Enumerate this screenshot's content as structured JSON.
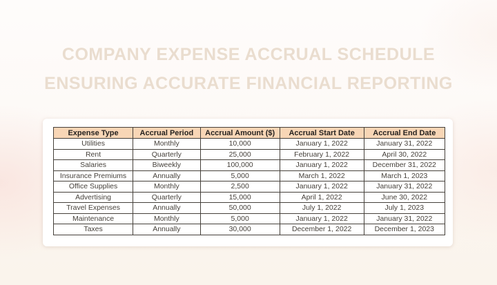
{
  "title": {
    "line1": "COMPANY EXPENSE ACCRUAL SCHEDULE",
    "line2": "ENSURING ACCURATE FINANCIAL REPORTING"
  },
  "colors": {
    "title_text": "#eaddcf",
    "header_bg": "#f8d6b6",
    "table_border": "#45403a",
    "panel_bg": "#ffffff",
    "page_bg": "#fdf9f6"
  },
  "table": {
    "columns": [
      "Expense Type",
      "Accrual Period",
      "Accrual Amount ($)",
      "Accrual Start Date",
      "Accrual End Date"
    ],
    "rows": [
      [
        "Utilities",
        "Monthly",
        "10,000",
        "January 1, 2022",
        "January 31, 2022"
      ],
      [
        "Rent",
        "Quarterly",
        "25,000",
        "February 1, 2022",
        "April 30, 2022"
      ],
      [
        "Salaries",
        "Biweekly",
        "100,000",
        "January 1, 2022",
        "December 31, 2022"
      ],
      [
        "Insurance Premiums",
        "Annually",
        "5,000",
        "March 1, 2022",
        "March 1, 2023"
      ],
      [
        "Office Supplies",
        "Monthly",
        "2,500",
        "January 1, 2022",
        "January 31, 2022"
      ],
      [
        "Advertising",
        "Quarterly",
        "15,000",
        "April 1, 2022",
        "June 30, 2022"
      ],
      [
        "Travel Expenses",
        "Annually",
        "50,000",
        "July 1, 2022",
        "July 1, 2023"
      ],
      [
        "Maintenance",
        "Monthly",
        "5,000",
        "January 1, 2022",
        "January 31, 2022"
      ],
      [
        "Taxes",
        "Annually",
        "30,000",
        "December 1, 2022",
        "December 1, 2023"
      ]
    ]
  }
}
